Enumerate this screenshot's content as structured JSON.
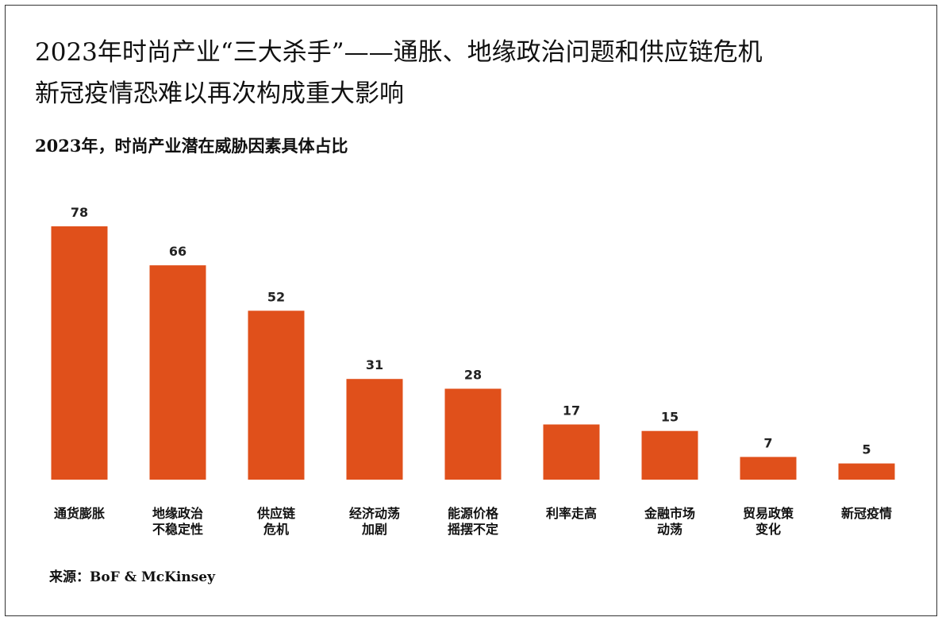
{
  "title": {
    "line1": "2023年时尚产业“三大杀手”——通胀、地缘政治问题和供应链危机",
    "line2": "新冠疫情恐难以再次构成重大影响"
  },
  "subtitle": "2023年，时尚产业潜在威胁因素具体占比",
  "source": "来源：BoF & McKinsey",
  "colors": {
    "bar": "#E0501B"
  },
  "chart_data": {
    "type": "bar",
    "title": "2023年，时尚产业潜在威胁因素具体占比",
    "categories": [
      [
        "通货膨胀"
      ],
      [
        "地缘政治",
        "不稳定性"
      ],
      [
        "供应链",
        "危机"
      ],
      [
        "经济动荡",
        "加剧"
      ],
      [
        "能源价格",
        "摇摆不定"
      ],
      [
        "利率走高"
      ],
      [
        "金融市场",
        "动荡"
      ],
      [
        "贸易政策",
        "变化"
      ],
      [
        "新冠疫情"
      ]
    ],
    "values": [
      78,
      66,
      52,
      31,
      28,
      17,
      15,
      7,
      5
    ],
    "xlabel": "",
    "ylabel": "",
    "ylim": [
      0,
      78
    ],
    "grid": false,
    "legend": "none"
  }
}
